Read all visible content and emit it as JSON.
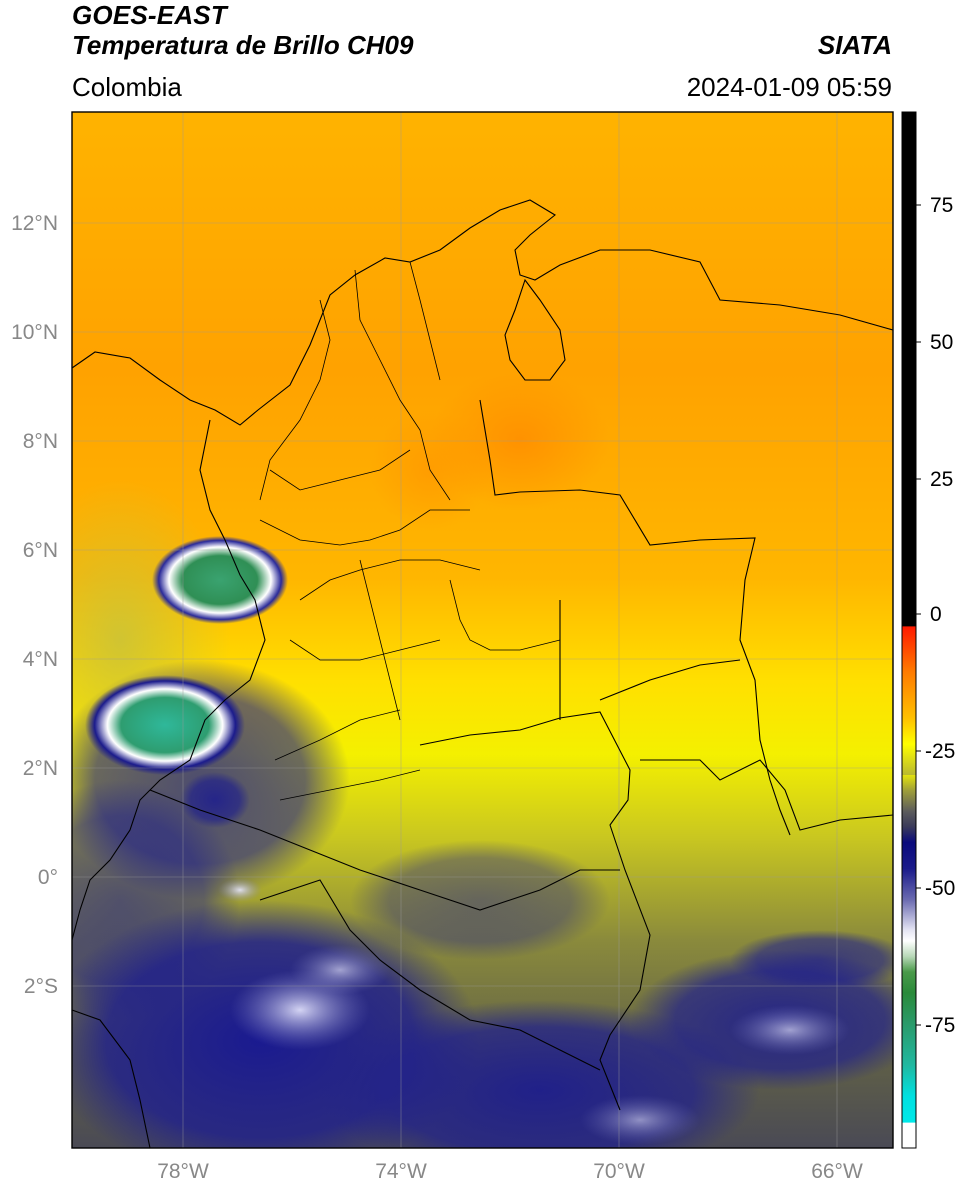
{
  "header": {
    "satellite": "GOES-EAST",
    "product": "Temperatura de Brillo CH09",
    "region": "Colombia",
    "brand": "SIATA",
    "datetime": "2024-01-09 05:59"
  },
  "map": {
    "lat_labels": [
      "12°N",
      "10°N",
      "8°N",
      "6°N",
      "4°N",
      "2°N",
      "0°",
      "2°S"
    ],
    "lon_labels": [
      "78°W",
      "74°W",
      "70°W",
      "66°W"
    ],
    "extent": {
      "lon_min": -80,
      "lon_max": -65,
      "lat_min": -5,
      "lat_max": 14
    }
  },
  "colorbar": {
    "tick_labels": [
      "75",
      "50",
      "25",
      "0",
      "-25",
      "-50",
      "-75"
    ],
    "range": [
      -95,
      90
    ],
    "colors": {
      "black": "#000000",
      "red": "#ff1a00",
      "orange": "#ff9900",
      "yellow": "#ffff00",
      "olive": "#6b6b3c",
      "navy": "#000a80",
      "white": "#ffffff",
      "green": "#228b22",
      "cyan": "#00e5e5"
    }
  }
}
